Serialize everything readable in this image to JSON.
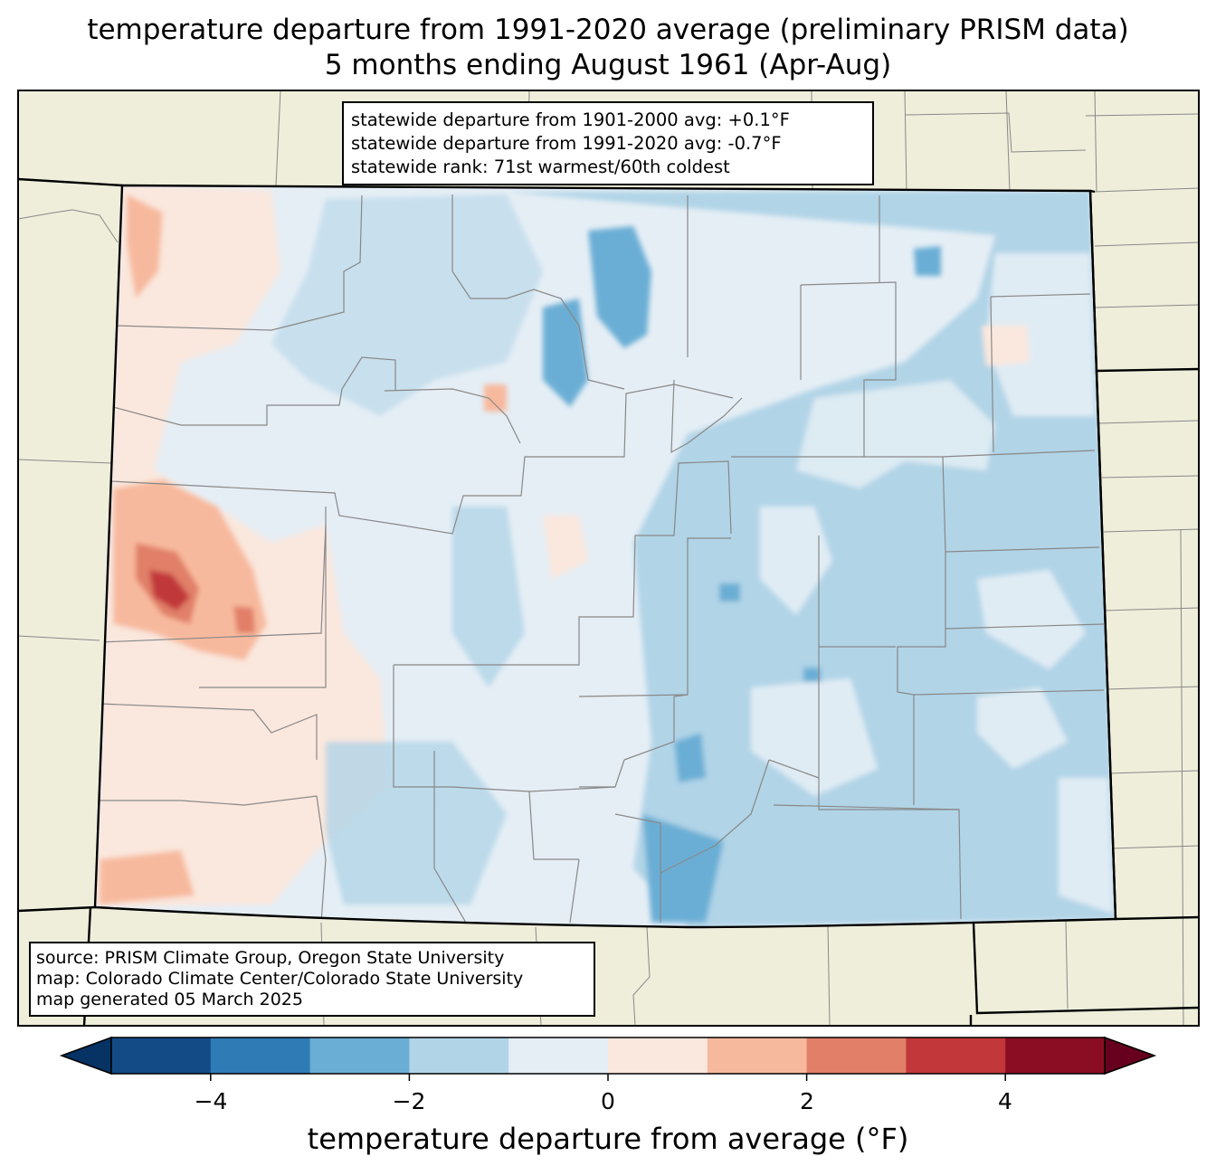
{
  "title": {
    "line1": "temperature departure from 1991-2020 average (preliminary PRISM data)",
    "line2": "5 months ending August 1961 (Apr-Aug)"
  },
  "stats": {
    "line1": "statewide departure from 1901-2000 avg: +0.1°F",
    "line2": "statewide departure from 1991-2020 avg: -0.7°F",
    "line3": "statewide rank: 71st warmest/60th coldest"
  },
  "source": {
    "line1": "source: PRISM Climate Group, Oregon State University",
    "line2": "map: Colorado Climate Center/Colorado State University",
    "line3": "map generated 05 March 2025"
  },
  "colorbar": {
    "label": "temperature departure from average (°F)",
    "ticks": [
      "−4",
      "−2",
      "0",
      "2",
      "4"
    ],
    "bins": [
      {
        "min": -5,
        "max": -4,
        "color": "#134b86"
      },
      {
        "min": -4,
        "max": -3,
        "color": "#2f7bb6"
      },
      {
        "min": -3,
        "max": -2,
        "color": "#6baed5"
      },
      {
        "min": -2,
        "max": -1,
        "color": "#b1d4e7"
      },
      {
        "min": -1,
        "max": 0,
        "color": "#e5eef5"
      },
      {
        "min": 0,
        "max": 1,
        "color": "#fae7dd"
      },
      {
        "min": 1,
        "max": 2,
        "color": "#f7b99d"
      },
      {
        "min": 2,
        "max": 3,
        "color": "#e17f68"
      },
      {
        "min": 3,
        "max": 4,
        "color": "#c1373a"
      },
      {
        "min": 4,
        "max": 5,
        "color": "#8a0d24"
      }
    ],
    "under_color": "#063264",
    "over_color": "#67001f"
  },
  "colors": {
    "land": "#efeedb",
    "county_line": "#888888",
    "state_line": "#000000"
  }
}
